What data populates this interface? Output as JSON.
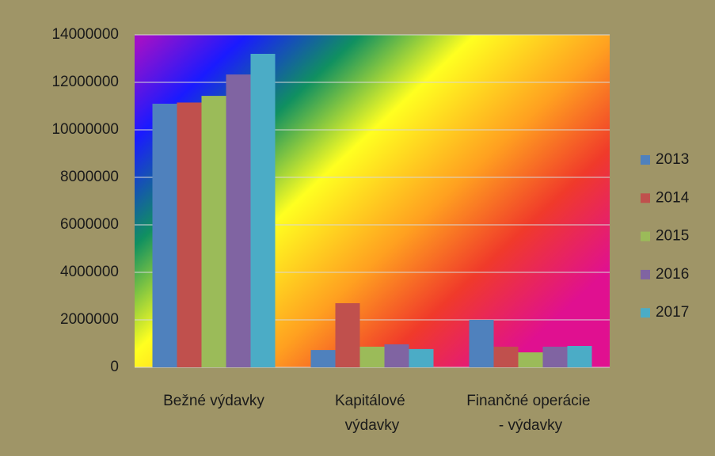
{
  "chart_data": {
    "type": "bar",
    "categories": [
      "Bežné výdavky",
      "Kapitálové výdavky",
      "Finančné operácie - výdavky"
    ],
    "series": [
      {
        "name": "2013",
        "color": "#4f81bd",
        "values": [
          11100000,
          730000,
          2000000
        ]
      },
      {
        "name": "2014",
        "color": "#c0504d",
        "values": [
          11150000,
          2700000,
          870000
        ]
      },
      {
        "name": "2015",
        "color": "#9bbb59",
        "values": [
          11430000,
          870000,
          630000
        ]
      },
      {
        "name": "2016",
        "color": "#8064a2",
        "values": [
          12330000,
          970000,
          870000
        ]
      },
      {
        "name": "2017",
        "color": "#4bacc6",
        "values": [
          13200000,
          770000,
          900000
        ]
      }
    ],
    "ylim": [
      0,
      14000000
    ],
    "yticks": [
      0,
      2000000,
      4000000,
      6000000,
      8000000,
      10000000,
      12000000,
      14000000
    ],
    "grid": true,
    "legend": "right"
  }
}
